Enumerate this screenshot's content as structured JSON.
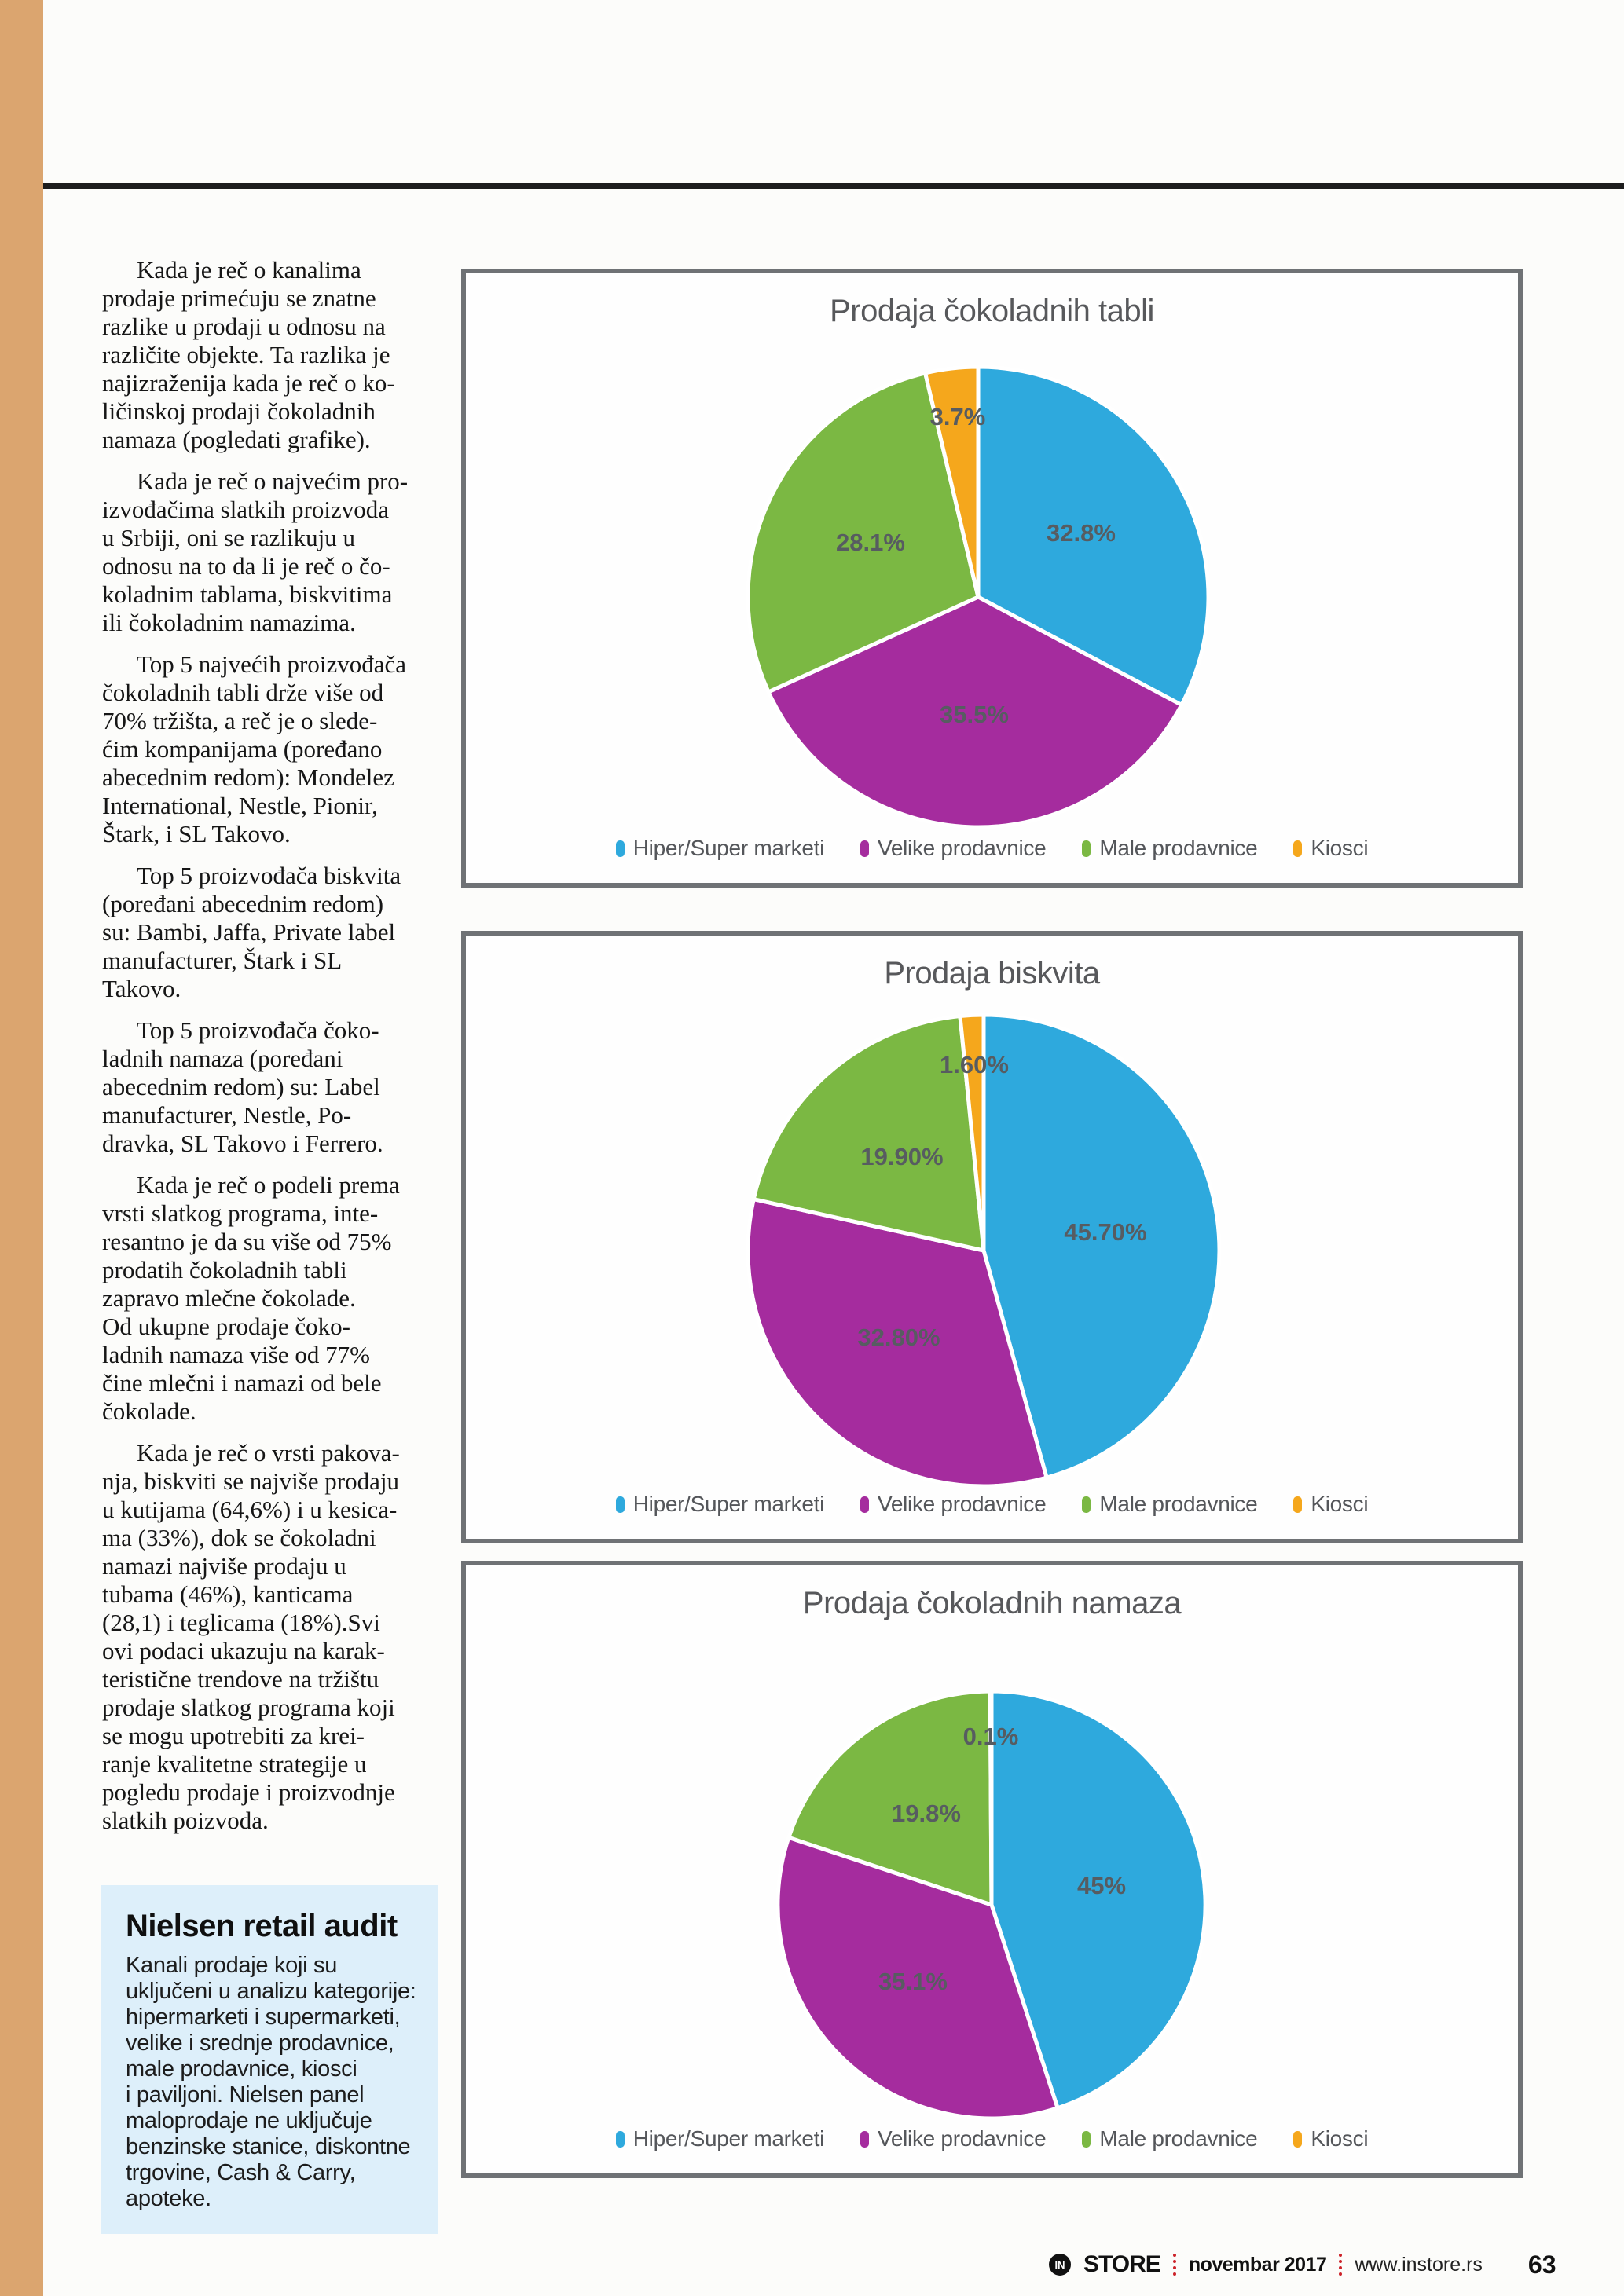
{
  "page": {
    "accent_color": "#dba56f",
    "footer": {
      "logo_in": "IN",
      "logo_store": "STORE",
      "issue": "novembar 2017",
      "website": "www.instore.rs",
      "page_number": "63"
    }
  },
  "article": {
    "paragraphs": [
      {
        "lines": [
          "Kada je reč o kanalima",
          "prodaje primećuju se znatne",
          "razlike u prodaji u odnosu na",
          "različite objekte. Ta razlika je",
          "najizraženija kada je reč o ko-",
          "ličinskoj prodaji čokoladnih",
          "namaza (pogledati grafike)."
        ]
      },
      {
        "lines": [
          "Kada je reč o najvećim pro-",
          "izvođačima slatkih proizvoda",
          "u Srbiji, oni se razlikuju u",
          "odnosu na to da li je reč o čo-",
          "koladnim tablama, biskvitima",
          "ili čokoladnim namazima."
        ]
      },
      {
        "lines": [
          "Top 5 najvećih proizvođača",
          "čokoladnih tabli drže više od",
          "70% tržišta, a reč je o slede-",
          "ćim kompanijama (poređano",
          "abecednim redom): Mondelez",
          "International, Nestle, Pionir,",
          "Štark, i SL Takovo."
        ]
      },
      {
        "lines": [
          "Top 5 proizvođača biskvita",
          "(poređani abecednim redom)",
          "su: Bambi, Jaffa, Private label",
          "manufacturer, Štark i SL",
          "Takovo."
        ]
      },
      {
        "lines": [
          "Top 5 proizvođača čoko-",
          "ladnih namaza (poređani",
          "abecednim redom) su: Label",
          "manufacturer, Nestle, Po-",
          "dravka, SL Takovo i Ferrero."
        ]
      },
      {
        "lines": [
          "Kada je reč o podeli prema",
          "vrsti slatkog programa, inte-",
          "resantno je da su više od 75%",
          "prodatih čokoladnih tabli",
          "zapravo mlečne čokolade.",
          "Od ukupne prodaje čoko-",
          "ladnih namaza više od 77%",
          "čine mlečni i namazi od bele",
          "čokolade."
        ]
      },
      {
        "lines": [
          "Kada je reč o vrsti pakova-",
          "nja, biskviti se najviše prodaju",
          "u kutijama (64,6%) i u kesica-",
          "ma (33%), dok se čokoladni",
          "namazi najviše prodaju u",
          "tubama (46%), kanticama",
          "(28,1) i teglicama (18%).Svi",
          "ovi podaci ukazuju na karak-",
          "teristične trendove na tržištu",
          "prodaje slatkog programa koji",
          "se mogu upotrebiti za krei-",
          "ranje kvalitetne strategije u",
          "pogledu prodaje i proizvodnje",
          "slatkih poizvoda."
        ]
      }
    ]
  },
  "nielsen_box": {
    "title": "Nielsen retail audit",
    "lines": [
      "Kanali prodaje koji su",
      "uključeni u analizu kategorije:",
      "hipermarketi i supermarketi,",
      "velike i srednje prodavnice,",
      "male prodavnice, kiosci",
      "i paviljoni. Nielsen panel",
      "maloprodaje ne uključuje",
      "benzinske stanice, diskontne",
      "trgovine, Cash & Carry, apoteke."
    ]
  },
  "chart_data": [
    {
      "type": "pie",
      "title": "Prodaja čokoladnih tabli",
      "categories": [
        "Hiper/Super marketi",
        "Velike prodavnice",
        "Male prodavnice",
        "Kiosci"
      ],
      "values": [
        32.8,
        35.5,
        28.1,
        3.7
      ],
      "value_labels": [
        "32.8%",
        "35.5%",
        "28.1%",
        "3.7%"
      ],
      "colors": [
        "#2ea9dd",
        "#a52c9e",
        "#7bb843",
        "#f5a71c"
      ],
      "legend_position": "bottom",
      "start_angle_deg": 0,
      "direction": "clockwise"
    },
    {
      "type": "pie",
      "title": "Prodaja biskvita",
      "categories": [
        "Hiper/Super marketi",
        "Velike prodavnice",
        "Male prodavnice",
        "Kiosci"
      ],
      "values": [
        45.7,
        32.8,
        19.9,
        1.6
      ],
      "value_labels": [
        "45.70%",
        "32.80%",
        "19.90%",
        "1.60%"
      ],
      "colors": [
        "#2ea9dd",
        "#a52c9e",
        "#7bb843",
        "#f5a71c"
      ],
      "legend_position": "bottom",
      "start_angle_deg": 0,
      "direction": "clockwise"
    },
    {
      "type": "pie",
      "title": "Prodaja čokoladnih namaza",
      "categories": [
        "Hiper/Super marketi",
        "Velike prodavnice",
        "Male prodavnice",
        "Kiosci"
      ],
      "values": [
        45,
        35.1,
        19.8,
        0.1
      ],
      "value_labels": [
        "45%",
        "35.1%",
        "19.8%",
        "0.1%"
      ],
      "colors": [
        "#2ea9dd",
        "#a52c9e",
        "#7bb843",
        "#f5a71c"
      ],
      "legend_position": "bottom",
      "start_angle_deg": 0,
      "direction": "clockwise"
    }
  ]
}
